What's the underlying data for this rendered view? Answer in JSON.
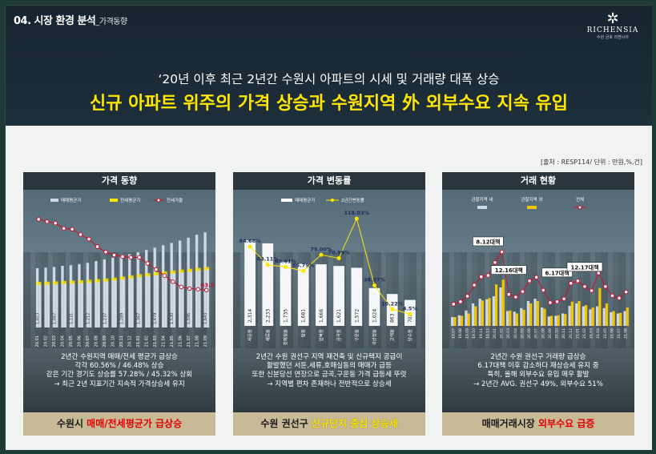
{
  "header": {
    "section": "04. 시장 환경 분석",
    "section_sub": "_가격동향",
    "subtitle": "‘20년 이후 최근 2년간 수원시 아파트의 시세 및 거래량 대폭 상승",
    "title": "신규 아파트 위주의 가격 상승과 수원지역 外 외부수요 지속 유입"
  },
  "logo": {
    "brand": "RICHENSIA",
    "tagline": "수원 금호 리첸시아"
  },
  "source": "[출처 : RESP114/ 단위 : 만원,%,건]",
  "colors": {
    "accent_yellow": "#ffe600",
    "line_red": "#c8102e",
    "bar_light": "#cfd8e6",
    "bar_gold": "#f2c500"
  },
  "panels": [
    {
      "title": "가격 동향",
      "text": [
        "2년간 수원지역 매매/전세 평균가 급상승",
        "각각 60.56% / 46.48% 상승",
        "같은 기간 경기도 상승률 57.28% / 45.32% 상회",
        "→ 최근 2년 지표기간 지속적 가격상승세 유지"
      ],
      "banner_pre": "수원시 ",
      "banner_hl": "매매/전세평균가 급상승",
      "banner_post": ""
    },
    {
      "title": "가격 변동률",
      "text": [
        "2년간 수원 권선구 지역 재건축 및 신규택지 공급이",
        "활발했던 서둔,세류,호매실동의 매매가 급등",
        "또한 신분당선 연장으로 금곡,구운동 가격 급등세 뚜렷",
        "→ 지역별 편차 존재하나 전반적으로 상승세"
      ],
      "banner_pre": "수원 권선구 ",
      "banner_hl": "신규단지 중심 상승세",
      "banner_post": ""
    },
    {
      "title": "거래 현황",
      "text": [
        "2년간 수원 권선구 거래량 급상승",
        "6.17대책 이후 감소하다 재상승세 유지 중",
        "특히, 올해 외부수요 유입 매우 활발",
        "→ 2년간 AVG. 권선구 49%, 외부수요 51%"
      ],
      "banner_pre": "매매거래시장 ",
      "banner_hl": "외부수요 급증",
      "banner_post": ""
    }
  ],
  "chart_data": [
    {
      "type": "bar",
      "title": "가격 동향",
      "legend": [
        "매매평균가",
        "전세평균가",
        "전세가율"
      ],
      "categories": [
        "20.01",
        "20.02",
        "20.03",
        "20.04",
        "20.05",
        "20.06",
        "20.07",
        "20.08",
        "20.09",
        "20.10",
        "20.11",
        "20.12",
        "21.01",
        "21.02",
        "21.03",
        "21.04",
        "21.05",
        "21.06",
        "21.07",
        "21.08",
        "21.09"
      ],
      "series": [
        {
          "name": "매매평균가",
          "values": [
            1010,
            1020,
            1030,
            1050,
            1060,
            1080,
            1100,
            1130,
            1160,
            1190,
            1220,
            1250,
            1280,
            1320,
            1360,
            1400,
            1440,
            1480,
            1530,
            1580,
            1620
          ]
        },
        {
          "name": "전세평균가",
          "values": [
            735,
            740,
            745,
            752,
            758,
            765,
            772,
            782,
            795,
            810,
            828,
            848,
            868,
            885,
            900,
            915,
            930,
            945,
            960,
            975,
            990
          ]
        },
        {
          "name": "전세가율",
          "values": [
            72.8,
            72.5,
            72.3,
            71.6,
            71.5,
            70.8,
            70.2,
            69.2,
            68.5,
            68.1,
            67.9,
            67.8,
            67.8,
            67.0,
            66.2,
            65.4,
            64.6,
            63.9,
            63.7,
            63.6,
            63.5
          ]
        }
      ],
      "labels": [
        "1,023",
        "1,047",
        "1,131",
        "1,212",
        "1,237",
        "1,289",
        "1,367",
        "1,479",
        "1,530",
        "1,596",
        "1,643"
      ],
      "last_rate_label": "63.5"
    },
    {
      "type": "bar",
      "title": "가격 변동률",
      "legend": [
        "매매평균가",
        "2년간변동률"
      ],
      "categories": [
        "서둔동",
        "세류동",
        "호매실동",
        "탑동",
        "입북동",
        "금곡동",
        "구운동",
        "곡반정동",
        "고색동",
        "당수동"
      ],
      "series": [
        {
          "name": "매매평균가",
          "values": [
            2314,
            2233,
            1735,
            1681,
            1666,
            1621,
            1572,
            1024,
            863,
            703
          ]
        },
        {
          "name": "2년간변동률",
          "values": [
            84.68,
            63.11,
            60.61,
            55.79,
            75.0,
            70.99,
            118.03,
            38.57,
            10.22,
            4.5
          ]
        }
      ],
      "bar_labels": [
        "2,314",
        "2,233",
        "1,735",
        "1,681",
        "1,666",
        "1,621",
        "1,572",
        "1,024",
        "863",
        "703"
      ],
      "rate_labels": [
        "84.68%",
        "63.11%",
        "60.61%",
        "55.79%",
        "75.00%",
        "70.99%",
        "118.03%",
        "38.57%",
        "10.22%",
        "4.5%"
      ]
    },
    {
      "type": "bar",
      "title": "거래 현황",
      "legend": [
        "관할지역 내",
        "관할지역 외",
        "전체"
      ],
      "categories": [
        "19.07",
        "19.08",
        "19.09",
        "19.10",
        "19.11",
        "19.12",
        "20.01",
        "20.02",
        "20.03",
        "20.04",
        "20.05",
        "20.06",
        "20.07",
        "20.08",
        "20.09",
        "20.10",
        "20.11",
        "20.12",
        "21.01",
        "21.02",
        "21.03",
        "21.04",
        "21.05",
        "21.06",
        "21.07",
        "21.08"
      ],
      "series": [
        {
          "name": "관할지역 내",
          "values": [
            150,
            180,
            260,
            380,
            460,
            450,
            500,
            650,
            250,
            240,
            300,
            420,
            460,
            310,
            160,
            170,
            210,
            340,
            380,
            330,
            280,
            330,
            300,
            230,
            210,
            250
          ]
        },
        {
          "name": "관할지역 외",
          "values": [
            150,
            170,
            210,
            330,
            430,
            470,
            700,
            780,
            260,
            210,
            270,
            380,
            420,
            290,
            170,
            180,
            200,
            410,
            420,
            350,
            310,
            640,
            380,
            250,
            220,
            310
          ]
        },
        {
          "name": "전체",
          "values": [
            300,
            350,
            470,
            710,
            890,
            920,
            1200,
            1430,
            510,
            450,
            570,
            800,
            880,
            600,
            330,
            350,
            410,
            750,
            800,
            680,
            590,
            970,
            680,
            480,
            430,
            560
          ]
        }
      ],
      "annotations": [
        "8.12대책",
        "12.16대책",
        "6.17대책",
        "12.17대책"
      ]
    }
  ]
}
